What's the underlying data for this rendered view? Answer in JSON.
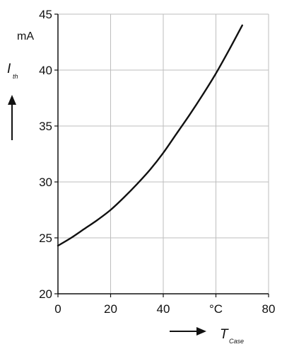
{
  "chart_data": {
    "type": "line",
    "x_axis": {
      "range": [
        0,
        80
      ],
      "ticks": [
        0,
        20,
        40,
        60,
        80
      ],
      "tick_labels": [
        "0",
        "20",
        "40",
        "°C",
        "80"
      ],
      "label_main": "T",
      "label_sub": "Case"
    },
    "y_axis": {
      "range": [
        20,
        45
      ],
      "ticks": [
        20,
        25,
        30,
        35,
        40,
        45
      ],
      "tick_labels": [
        "20",
        "25",
        "30",
        "35",
        "40",
        "45"
      ],
      "unit": "mA",
      "label_main": "I",
      "label_sub": "th"
    },
    "grid": true,
    "series": [
      {
        "x": [
          0,
          5,
          10,
          15,
          20,
          25,
          30,
          35,
          40,
          45,
          50,
          55,
          60,
          65,
          70
        ],
        "y": [
          24.3,
          25.0,
          25.8,
          26.6,
          27.5,
          28.6,
          29.8,
          31.1,
          32.6,
          34.3,
          36.0,
          37.8,
          39.7,
          41.8,
          44.0
        ]
      }
    ],
    "colors": {
      "line": "#111111",
      "grid": "#bdbdbd",
      "axis": "#111111"
    }
  }
}
